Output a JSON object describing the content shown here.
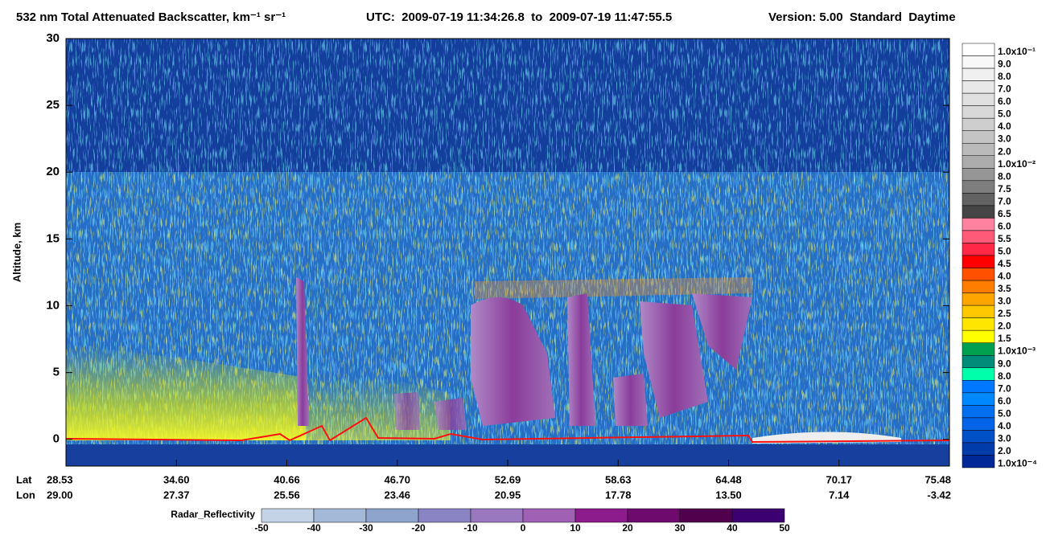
{
  "chart_data": {
    "type": "heatmap",
    "title": "532 nm Total Attenuated Backscatter, km⁻¹ sr⁻¹",
    "subtitle": "UTC:  2009-07-19 11:34:26.8  to  2009-07-19 11:47:55.5",
    "version": "Version: 5.00  Standard  Daytime",
    "y_label": "Altitude, km",
    "ylim": [
      -2,
      30
    ],
    "yticks": [
      0,
      5,
      10,
      15,
      20,
      25,
      30
    ],
    "x_row_labels": [
      "Lat",
      "Lon"
    ],
    "lat": [
      "28.53",
      "34.60",
      "40.66",
      "46.70",
      "52.69",
      "58.63",
      "64.48",
      "70.17",
      "75.48"
    ],
    "lon": [
      "29.00",
      "27.37",
      "25.56",
      "23.46",
      "20.95",
      "17.78",
      "13.50",
      "7.14",
      "-3.42"
    ],
    "colorbar": {
      "labels": [
        "1.0x10⁻¹",
        "9.0",
        "8.0",
        "7.0",
        "6.0",
        "5.0",
        "4.0",
        "3.0",
        "2.0",
        "1.0x10⁻²",
        "8.0",
        "7.5",
        "7.0",
        "6.5",
        "6.0",
        "5.5",
        "5.0",
        "4.5",
        "4.0",
        "3.5",
        "3.0",
        "2.5",
        "2.0",
        "1.5",
        "1.0x10⁻³",
        "9.0",
        "8.0",
        "7.0",
        "6.0",
        "5.0",
        "4.0",
        "3.0",
        "2.0",
        "1.0x10⁻⁴"
      ],
      "colors": [
        "#ffffff",
        "#f8f8f8",
        "#f0f0f0",
        "#e8e8e8",
        "#e0e0e0",
        "#d8d8d8",
        "#cecece",
        "#c4c4c4",
        "#bababa",
        "#acacac",
        "#969696",
        "#7e7e7e",
        "#626262",
        "#454545",
        "#ff82a0",
        "#ff5a78",
        "#ff2846",
        "#ff0000",
        "#ff5000",
        "#ff7d00",
        "#ffa500",
        "#ffc800",
        "#ffe600",
        "#ffff00",
        "#00a050",
        "#008c78",
        "#00ffaa",
        "#0078ff",
        "#0088ff",
        "#0070f0",
        "#0064e6",
        "#0050c8",
        "#003caa",
        "#002896"
      ]
    },
    "radar_colorbar": {
      "label": "Radar_Reflectivity",
      "range": [
        -50,
        50
      ],
      "ticks": [
        -50,
        -40,
        -30,
        -20,
        -10,
        0,
        10,
        20,
        30,
        40,
        50
      ],
      "colors": [
        "#c4d4e6",
        "#a4b8d8",
        "#8ea4cc",
        "#8a84c4",
        "#9a78c0",
        "#a060b4",
        "#8c1c8c",
        "#6e0a6e",
        "#50004c",
        "#3c0070"
      ]
    }
  }
}
